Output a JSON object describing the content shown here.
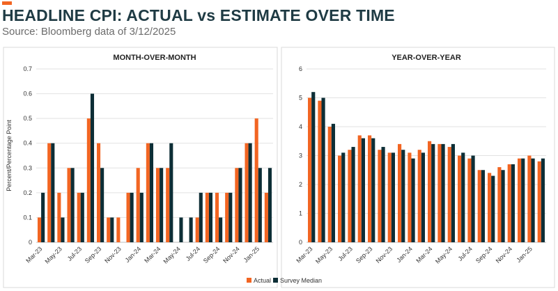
{
  "header": {
    "title": "HEADLINE CPI: ACTUAL vs ESTIMATE OVER TIME",
    "subtitle": "Source: Bloomberg data of 3/12/2025"
  },
  "colors": {
    "accent": "#f26522",
    "actual": "#f26522",
    "survey": "#0d2e36",
    "title": "#1f3b44",
    "grid": "#e2e2e2",
    "axis_text": "#333333"
  },
  "legend": {
    "actual_label": "Actual",
    "survey_label": "Survey Median"
  },
  "chart_data": [
    {
      "type": "bar",
      "title": "MONTH-OVER-MONTH",
      "ylabel": "Percent/Percentage Point",
      "xlabel": "",
      "ylim": [
        0,
        0.7
      ],
      "yticks": [
        0,
        0.1,
        0.2,
        0.3,
        0.4,
        0.5,
        0.6,
        0.7
      ],
      "grid": true,
      "categories": [
        "Mar-23",
        "Apr-23",
        "May-23",
        "Jun-23",
        "Jul-23",
        "Aug-23",
        "Sep-23",
        "Oct-23",
        "Nov-23",
        "Dec-23",
        "Jan-24",
        "Feb-24",
        "Mar-24",
        "Apr-24",
        "May-24",
        "Jun-24",
        "Jul-24",
        "Aug-24",
        "Sep-24",
        "Oct-24",
        "Nov-24",
        "Dec-24",
        "Jan-25",
        "Feb-25"
      ],
      "tick_labels": [
        "Mar-23",
        "May-23",
        "Jul-23",
        "Sep-23",
        "Nov-23",
        "Jan-24",
        "Mar-24",
        "May-24",
        "Jul-24",
        "Sep-24",
        "Nov-24",
        "Jan-25"
      ],
      "series": [
        {
          "name": "Actual",
          "values": [
            0.1,
            0.4,
            0.2,
            0.3,
            0.2,
            0.5,
            0.4,
            0.1,
            0.1,
            0.2,
            0.3,
            0.4,
            0.3,
            0.3,
            0.0,
            0.0,
            0.1,
            0.2,
            0.2,
            0.2,
            0.3,
            0.4,
            0.5,
            0.2
          ]
        },
        {
          "name": "Survey Median",
          "values": [
            0.2,
            0.4,
            0.1,
            0.3,
            0.2,
            0.6,
            0.3,
            0.1,
            0.0,
            0.2,
            0.2,
            0.4,
            0.3,
            0.4,
            0.1,
            0.1,
            0.2,
            0.2,
            0.1,
            0.2,
            0.3,
            0.4,
            0.3,
            0.3
          ]
        }
      ]
    },
    {
      "type": "bar",
      "title": "YEAR-OVER-YEAR",
      "ylabel": "",
      "xlabel": "",
      "ylim": [
        0,
        6
      ],
      "yticks": [
        0,
        1,
        2,
        3,
        4,
        5,
        6
      ],
      "grid": true,
      "categories": [
        "Mar-23",
        "Apr-23",
        "May-23",
        "Jun-23",
        "Jul-23",
        "Aug-23",
        "Sep-23",
        "Oct-23",
        "Nov-23",
        "Dec-23",
        "Jan-24",
        "Feb-24",
        "Mar-24",
        "Apr-24",
        "May-24",
        "Jun-24",
        "Jul-24",
        "Aug-24",
        "Sep-24",
        "Oct-24",
        "Nov-24",
        "Dec-24",
        "Jan-25",
        "Feb-25"
      ],
      "tick_labels": [
        "Mar-23",
        "May-23",
        "Jul-23",
        "Sep-23",
        "Nov-23",
        "Jan-24",
        "Mar-24",
        "May-24",
        "Jul-24",
        "Sep-24",
        "Nov-24",
        "Jan-25"
      ],
      "series": [
        {
          "name": "Actual",
          "values": [
            5.0,
            4.9,
            4.0,
            3.0,
            3.2,
            3.7,
            3.7,
            3.2,
            3.1,
            3.4,
            3.1,
            3.2,
            3.5,
            3.4,
            3.3,
            3.0,
            2.9,
            2.5,
            2.4,
            2.6,
            2.7,
            2.9,
            3.0,
            2.8
          ]
        },
        {
          "name": "Survey Median",
          "values": [
            5.2,
            5.0,
            4.1,
            3.1,
            3.3,
            3.6,
            3.6,
            3.3,
            3.1,
            3.2,
            2.9,
            3.1,
            3.4,
            3.4,
            3.4,
            3.1,
            3.0,
            2.5,
            2.3,
            2.5,
            2.7,
            2.9,
            2.9,
            2.9
          ]
        }
      ]
    }
  ]
}
